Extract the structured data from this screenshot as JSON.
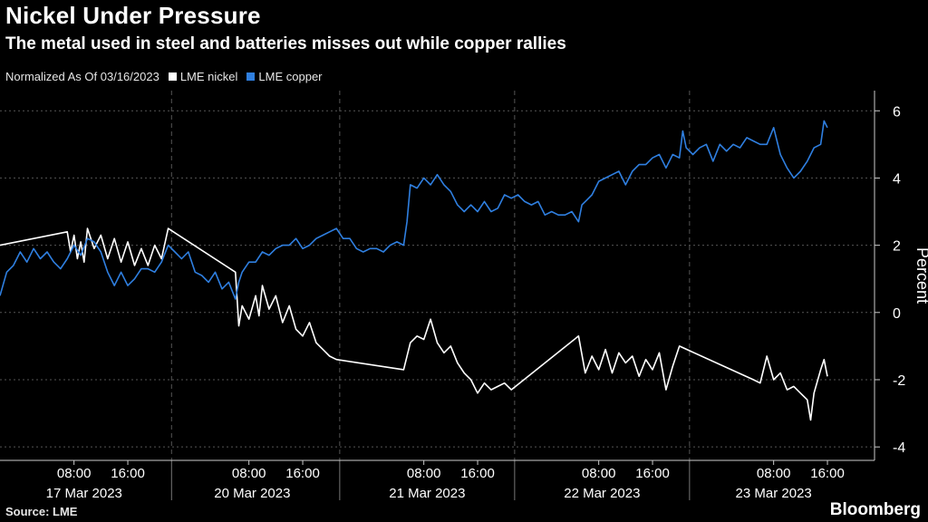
{
  "header": {
    "title": "Nickel Under Pressure",
    "subtitle": "The metal used in steel and batteries misses out while copper rallies"
  },
  "legend": {
    "note": "Normalized As Of 03/16/2023",
    "items": [
      {
        "label": "LME nickel",
        "color": "#ffffff"
      },
      {
        "label": "LME copper",
        "color": "#2f7fe0"
      }
    ]
  },
  "footer": {
    "source": "Source: LME",
    "brand": "Bloomberg"
  },
  "chart_data": {
    "type": "line",
    "title": "Nickel Under Pressure",
    "ylabel": "Percent",
    "ylim": [
      -4.4,
      6.6
    ],
    "yticks": [
      6,
      4,
      2,
      0,
      -2,
      -4
    ],
    "xlim": [
      0,
      130
    ],
    "time_ticks": [
      {
        "x": 11,
        "label": "08:00"
      },
      {
        "x": 19,
        "label": "16:00"
      },
      {
        "x": 37,
        "label": "08:00"
      },
      {
        "x": 45,
        "label": "16:00"
      },
      {
        "x": 63,
        "label": "08:00"
      },
      {
        "x": 71,
        "label": "16:00"
      },
      {
        "x": 89,
        "label": "08:00"
      },
      {
        "x": 97,
        "label": "16:00"
      },
      {
        "x": 115,
        "label": "08:00"
      },
      {
        "x": 123,
        "label": "16:00"
      }
    ],
    "day_labels": [
      {
        "x": 12.5,
        "label": "17 Mar 2023"
      },
      {
        "x": 37.5,
        "label": "20 Mar 2023"
      },
      {
        "x": 63.5,
        "label": "21 Mar 2023"
      },
      {
        "x": 89.5,
        "label": "22 Mar 2023"
      },
      {
        "x": 115,
        "label": "23 Mar 2023"
      }
    ],
    "day_separators": [
      25.5,
      50.5,
      76.5,
      102.5
    ],
    "series": [
      {
        "name": "LME nickel",
        "color": "#ffffff",
        "points": [
          [
            0,
            2.0
          ],
          [
            10,
            2.4
          ],
          [
            10.5,
            1.8
          ],
          [
            11,
            2.3
          ],
          [
            11.5,
            1.6
          ],
          [
            12,
            2.1
          ],
          [
            12.5,
            1.5
          ],
          [
            13,
            2.5
          ],
          [
            14,
            1.9
          ],
          [
            15,
            2.3
          ],
          [
            16,
            1.6
          ],
          [
            17,
            2.2
          ],
          [
            18,
            1.5
          ],
          [
            19,
            2.1
          ],
          [
            20,
            1.4
          ],
          [
            21,
            1.9
          ],
          [
            22,
            1.4
          ],
          [
            23,
            2.0
          ],
          [
            24,
            1.6
          ],
          [
            25,
            2.5
          ],
          [
            35,
            1.2
          ],
          [
            35.5,
            -0.4
          ],
          [
            36,
            0.2
          ],
          [
            37,
            -0.2
          ],
          [
            38,
            0.5
          ],
          [
            38.5,
            -0.1
          ],
          [
            39,
            0.8
          ],
          [
            40,
            0.1
          ],
          [
            41,
            0.5
          ],
          [
            42,
            -0.3
          ],
          [
            43,
            0.2
          ],
          [
            44,
            -0.5
          ],
          [
            45,
            -0.7
          ],
          [
            46,
            -0.3
          ],
          [
            47,
            -0.9
          ],
          [
            48,
            -1.1
          ],
          [
            49,
            -1.3
          ],
          [
            50,
            -1.4
          ],
          [
            60,
            -1.7
          ],
          [
            61,
            -0.9
          ],
          [
            62,
            -0.7
          ],
          [
            63,
            -0.8
          ],
          [
            64,
            -0.2
          ],
          [
            65,
            -0.9
          ],
          [
            66,
            -1.2
          ],
          [
            67,
            -1.0
          ],
          [
            68,
            -1.5
          ],
          [
            69,
            -1.8
          ],
          [
            70,
            -2.0
          ],
          [
            71,
            -2.4
          ],
          [
            72,
            -2.1
          ],
          [
            73,
            -2.3
          ],
          [
            74,
            -2.2
          ],
          [
            75,
            -2.1
          ],
          [
            76,
            -2.3
          ],
          [
            86,
            -0.7
          ],
          [
            87,
            -1.8
          ],
          [
            88,
            -1.3
          ],
          [
            89,
            -1.7
          ],
          [
            90,
            -1.1
          ],
          [
            91,
            -1.8
          ],
          [
            92,
            -1.2
          ],
          [
            93,
            -1.5
          ],
          [
            94,
            -1.3
          ],
          [
            95,
            -1.9
          ],
          [
            96,
            -1.4
          ],
          [
            97,
            -1.7
          ],
          [
            98,
            -1.2
          ],
          [
            99,
            -2.3
          ],
          [
            100,
            -1.6
          ],
          [
            101,
            -1.0
          ],
          [
            112,
            -2.0
          ],
          [
            113,
            -2.1
          ],
          [
            114,
            -1.3
          ],
          [
            115,
            -2.0
          ],
          [
            116,
            -1.8
          ],
          [
            117,
            -2.3
          ],
          [
            118,
            -2.2
          ],
          [
            119,
            -2.4
          ],
          [
            120,
            -2.6
          ],
          [
            120.5,
            -3.2
          ],
          [
            121,
            -2.4
          ],
          [
            122,
            -1.7
          ],
          [
            122.5,
            -1.4
          ],
          [
            123,
            -1.9
          ]
        ]
      },
      {
        "name": "LME copper",
        "color": "#2f7fe0",
        "points": [
          [
            0,
            0.5
          ],
          [
            1,
            1.2
          ],
          [
            2,
            1.4
          ],
          [
            3,
            1.8
          ],
          [
            4,
            1.5
          ],
          [
            5,
            1.9
          ],
          [
            6,
            1.6
          ],
          [
            7,
            1.8
          ],
          [
            8,
            1.5
          ],
          [
            9,
            1.3
          ],
          [
            10,
            1.6
          ],
          [
            11,
            2.0
          ],
          [
            12,
            1.7
          ],
          [
            13,
            2.2
          ],
          [
            14,
            2.1
          ],
          [
            15,
            1.8
          ],
          [
            16,
            1.2
          ],
          [
            17,
            0.8
          ],
          [
            18,
            1.2
          ],
          [
            19,
            0.8
          ],
          [
            20,
            1.0
          ],
          [
            21,
            1.3
          ],
          [
            22,
            1.3
          ],
          [
            23,
            1.2
          ],
          [
            24,
            1.5
          ],
          [
            25,
            2.0
          ],
          [
            26,
            1.8
          ],
          [
            27,
            1.6
          ],
          [
            28,
            1.8
          ],
          [
            29,
            1.2
          ],
          [
            30,
            1.1
          ],
          [
            31,
            0.9
          ],
          [
            32,
            1.2
          ],
          [
            33,
            0.7
          ],
          [
            34,
            0.9
          ],
          [
            35,
            0.4
          ],
          [
            35.5,
            0.9
          ],
          [
            36,
            1.2
          ],
          [
            37,
            1.5
          ],
          [
            38,
            1.5
          ],
          [
            39,
            1.8
          ],
          [
            40,
            1.7
          ],
          [
            41,
            1.9
          ],
          [
            42,
            2.0
          ],
          [
            43,
            2.0
          ],
          [
            44,
            2.2
          ],
          [
            45,
            1.9
          ],
          [
            46,
            2.0
          ],
          [
            47,
            2.2
          ],
          [
            48,
            2.3
          ],
          [
            49,
            2.4
          ],
          [
            50,
            2.5
          ],
          [
            51,
            2.2
          ],
          [
            52,
            2.2
          ],
          [
            53,
            1.9
          ],
          [
            54,
            1.8
          ],
          [
            55,
            1.9
          ],
          [
            56,
            1.9
          ],
          [
            57,
            1.8
          ],
          [
            58,
            2.0
          ],
          [
            59,
            2.1
          ],
          [
            60,
            2.0
          ],
          [
            60.5,
            2.7
          ],
          [
            61,
            3.8
          ],
          [
            62,
            3.7
          ],
          [
            63,
            4.0
          ],
          [
            64,
            3.8
          ],
          [
            65,
            4.1
          ],
          [
            66,
            3.8
          ],
          [
            67,
            3.6
          ],
          [
            68,
            3.2
          ],
          [
            69,
            3.0
          ],
          [
            70,
            3.2
          ],
          [
            71,
            3.0
          ],
          [
            72,
            3.3
          ],
          [
            73,
            3.0
          ],
          [
            74,
            3.1
          ],
          [
            75,
            3.5
          ],
          [
            76,
            3.4
          ],
          [
            77,
            3.5
          ],
          [
            78,
            3.3
          ],
          [
            79,
            3.2
          ],
          [
            80,
            3.3
          ],
          [
            81,
            2.9
          ],
          [
            82,
            3.0
          ],
          [
            83,
            2.9
          ],
          [
            84,
            2.9
          ],
          [
            85,
            3.0
          ],
          [
            86,
            2.7
          ],
          [
            86.5,
            3.2
          ],
          [
            87,
            3.3
          ],
          [
            88,
            3.5
          ],
          [
            89,
            3.9
          ],
          [
            90,
            4.0
          ],
          [
            91,
            4.1
          ],
          [
            92,
            4.2
          ],
          [
            93,
            3.8
          ],
          [
            94,
            4.2
          ],
          [
            95,
            4.4
          ],
          [
            96,
            4.4
          ],
          [
            97,
            4.6
          ],
          [
            98,
            4.7
          ],
          [
            99,
            4.3
          ],
          [
            100,
            4.7
          ],
          [
            101,
            4.6
          ],
          [
            101.5,
            5.4
          ],
          [
            102,
            4.9
          ],
          [
            103,
            4.7
          ],
          [
            104,
            4.9
          ],
          [
            105,
            5.0
          ],
          [
            106,
            4.5
          ],
          [
            107,
            5.0
          ],
          [
            108,
            4.8
          ],
          [
            109,
            5.0
          ],
          [
            110,
            4.9
          ],
          [
            111,
            5.2
          ],
          [
            112,
            5.1
          ],
          [
            113,
            5.0
          ],
          [
            114,
            5.0
          ],
          [
            115,
            5.5
          ],
          [
            116,
            4.7
          ],
          [
            117,
            4.3
          ],
          [
            118,
            4.0
          ],
          [
            119,
            4.2
          ],
          [
            120,
            4.5
          ],
          [
            121,
            4.9
          ],
          [
            122,
            5.0
          ],
          [
            122.5,
            5.7
          ],
          [
            123,
            5.5
          ]
        ]
      }
    ]
  }
}
